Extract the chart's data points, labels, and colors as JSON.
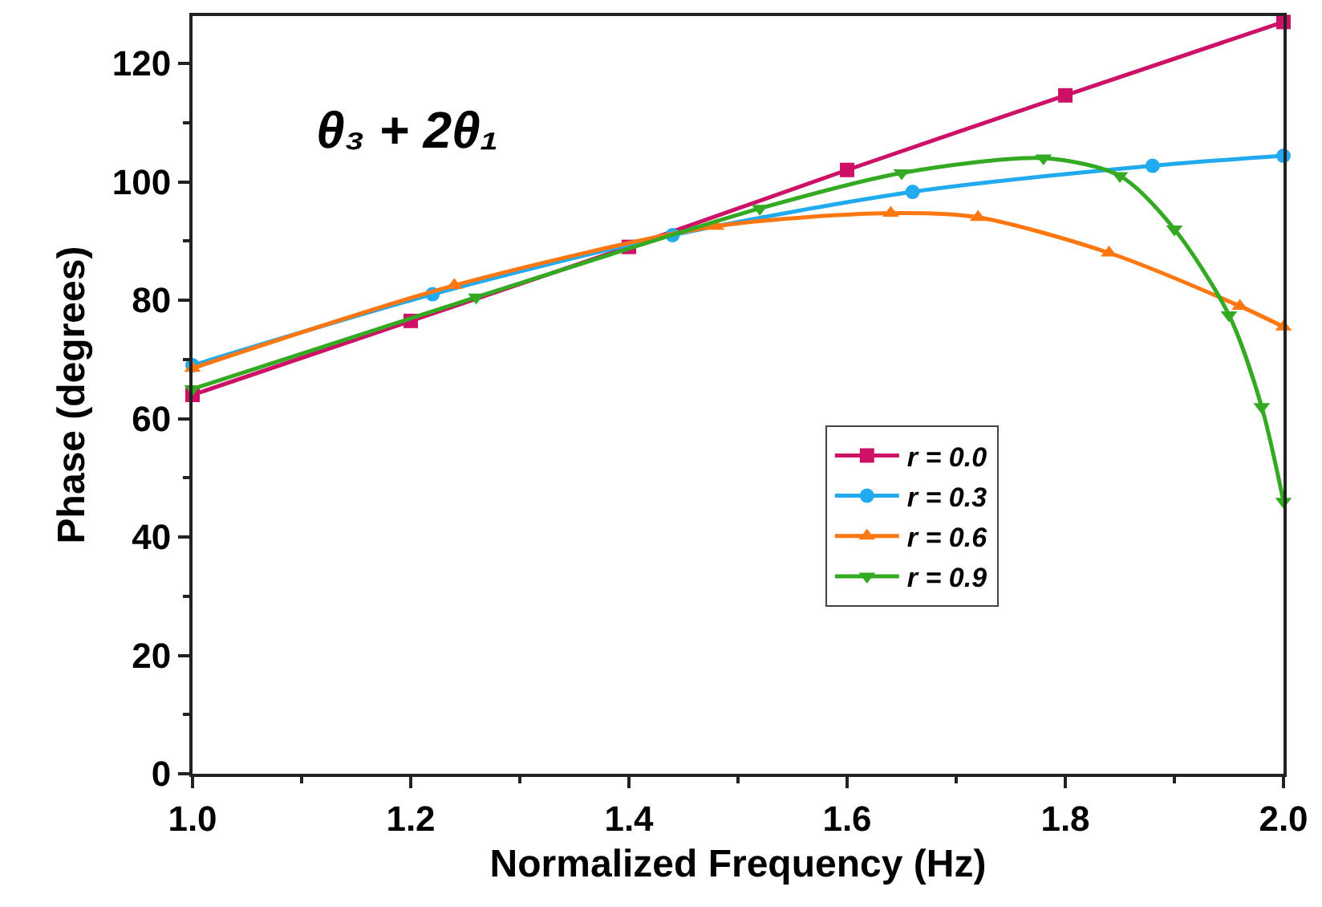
{
  "chart_data": {
    "type": "line",
    "xlabel": "Normalized Frequency (Hz)",
    "ylabel": "Phase (degrees)",
    "annotations": [
      "θ₃ + 2θ₁"
    ],
    "xlim": [
      1.0,
      2.0
    ],
    "xticks": [
      {
        "value": 1.0,
        "label": "1.0"
      },
      {
        "value": 1.2,
        "label": "1.2"
      },
      {
        "value": 1.4,
        "label": "1.4"
      },
      {
        "value": 1.6,
        "label": "1.6"
      },
      {
        "value": 1.8,
        "label": "1.8"
      },
      {
        "value": 2.0,
        "label": "2.0"
      }
    ],
    "ylim": [
      0,
      128
    ],
    "yticks": [
      0,
      20,
      40,
      60,
      80,
      100,
      120
    ],
    "grid": false,
    "legend": "bottom right",
    "line_style": "solid",
    "series": [
      {
        "name": "r = 0.0",
        "color": "#cc1166",
        "marker": "square",
        "x": [
          1.0,
          1.2,
          1.4,
          1.6,
          1.8,
          2.0
        ],
        "values": [
          64,
          76.5,
          89,
          102,
          114.6,
          127
        ]
      },
      {
        "name": "r = 0.3",
        "color": "#22aaee",
        "marker": "circle",
        "x": [
          1.0,
          1.22,
          1.44,
          1.66,
          1.88,
          2.0
        ],
        "values": [
          69,
          81,
          91,
          98.3,
          102.7,
          104.4
        ]
      },
      {
        "name": "r = 0.6",
        "color": "#ff7711",
        "marker": "triangle",
        "x": [
          1.0,
          1.24,
          1.48,
          1.64,
          1.72,
          1.84,
          1.96,
          2.0
        ],
        "values": [
          68.5,
          82.5,
          92.5,
          94.7,
          94,
          88,
          79,
          75.5
        ]
      },
      {
        "name": "r = 0.9",
        "color": "#33aa22",
        "marker": "triangle-down",
        "x": [
          1.0,
          1.26,
          1.52,
          1.65,
          1.78,
          1.85,
          1.9,
          1.95,
          1.98,
          2.0
        ],
        "values": [
          65,
          80.5,
          95.5,
          101.5,
          104,
          101,
          92,
          77.5,
          62,
          46
        ]
      }
    ]
  }
}
